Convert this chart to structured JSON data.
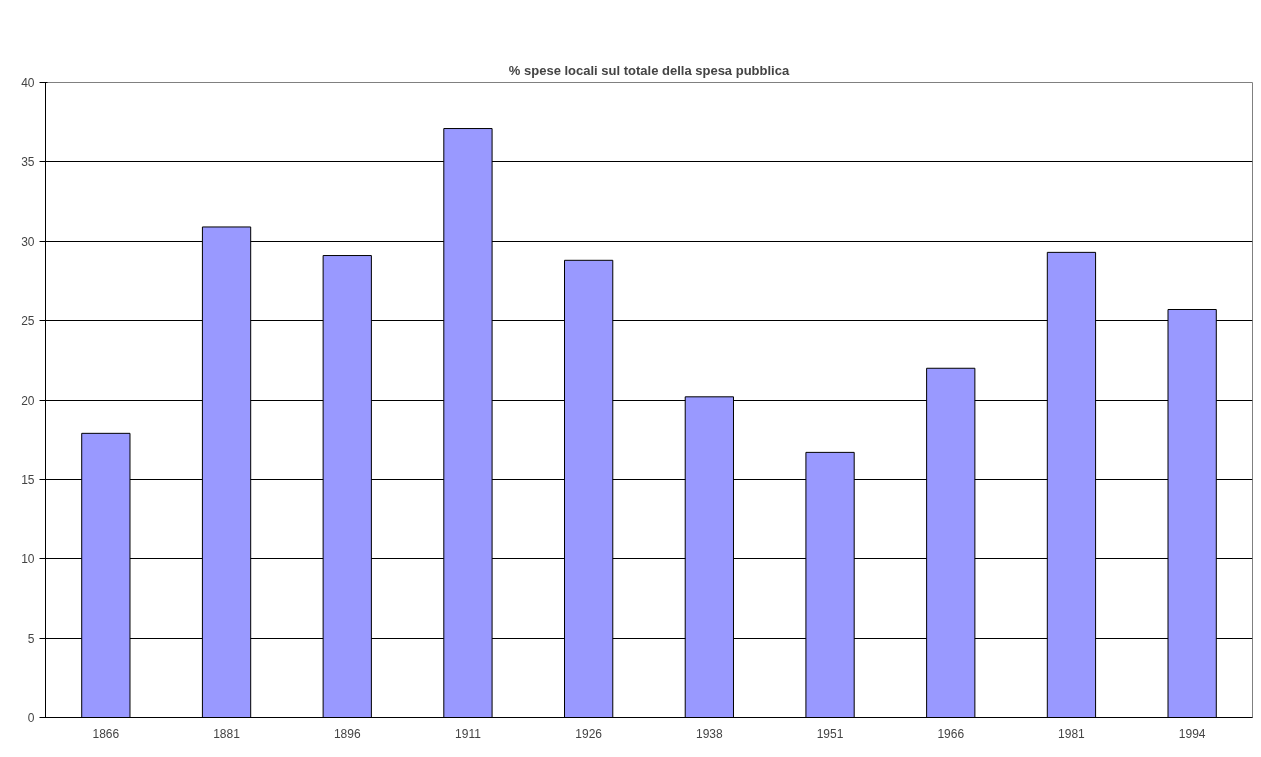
{
  "chart_data": {
    "type": "bar",
    "title": "% spese locali sul totale della spesa pubblica",
    "categories": [
      "1866",
      "1881",
      "1896",
      "1911",
      "1926",
      "1938",
      "1951",
      "1966",
      "1981",
      "1994"
    ],
    "values": [
      17.9,
      30.9,
      29.1,
      37.1,
      28.8,
      20.2,
      16.7,
      22.0,
      29.3,
      25.7
    ],
    "color": "#9999ff",
    "ylim": [
      0,
      40
    ],
    "yticks": [
      0,
      5,
      10,
      15,
      20,
      25,
      30,
      35,
      40
    ],
    "grid": "y"
  }
}
